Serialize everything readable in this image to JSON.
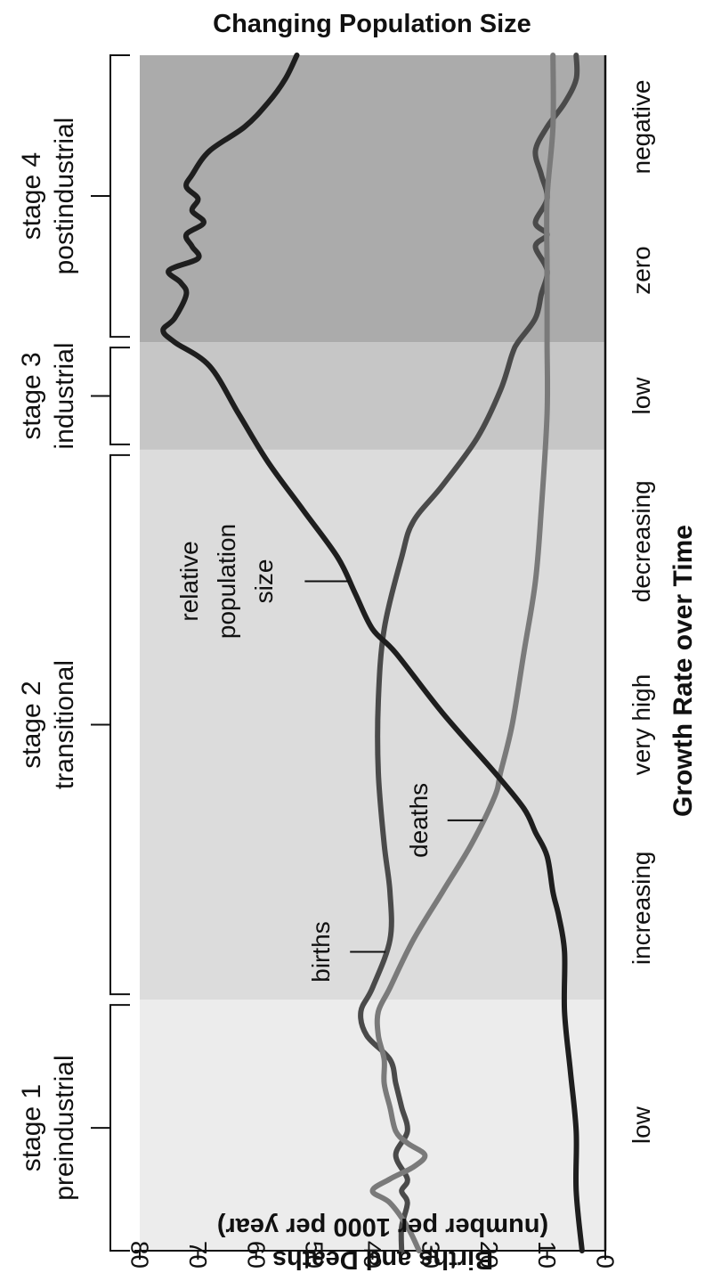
{
  "chart_data": {
    "type": "line",
    "title": "Changing Population Size",
    "xlabel": "Growth Rate over Time",
    "ylabel_lines": [
      "Births and Deaths",
      "(number per 1000 per year)"
    ],
    "ylim": [
      0,
      80
    ],
    "yticks": [
      0,
      10,
      20,
      30,
      40,
      50,
      60,
      70,
      80
    ],
    "xlim": [
      0,
      100
    ],
    "stages": [
      {
        "label_line1": "stage 1",
        "label_line2": "preindustrial",
        "start": 0,
        "end": 21,
        "rate": "low",
        "color": "#ececec"
      },
      {
        "label_line1": "stage 2",
        "label_line2": "transitional",
        "start": 21,
        "end": 67,
        "rate_labels": [
          "increasing",
          "very high",
          "decreasing"
        ],
        "color": "#dcdcdc"
      },
      {
        "label_line1": "stage 3",
        "label_line2": "industrial",
        "start": 67,
        "end": 76,
        "rate": "low",
        "color": "#c6c6c6"
      },
      {
        "label_line1": "stage 4",
        "label_line2": "postindustrial",
        "start": 76,
        "end": 100,
        "rate_labels": [
          "zero",
          "negative"
        ],
        "color": "#ababab"
      }
    ],
    "series": [
      {
        "name": "births",
        "color": "#4a4a4a",
        "points": [
          [
            0,
            35
          ],
          [
            2,
            35
          ],
          [
            4,
            34
          ],
          [
            5,
            35
          ],
          [
            6,
            34
          ],
          [
            8,
            36
          ],
          [
            10,
            34
          ],
          [
            12,
            35
          ],
          [
            14,
            36
          ],
          [
            16,
            37
          ],
          [
            18,
            41
          ],
          [
            20,
            42
          ],
          [
            22,
            40
          ],
          [
            26,
            37
          ],
          [
            30,
            37
          ],
          [
            34,
            38
          ],
          [
            40,
            39
          ],
          [
            46,
            39
          ],
          [
            52,
            38
          ],
          [
            58,
            35
          ],
          [
            61,
            33
          ],
          [
            64,
            28
          ],
          [
            68,
            22
          ],
          [
            72,
            18
          ],
          [
            75,
            16
          ],
          [
            76,
            15
          ],
          [
            78,
            12
          ],
          [
            80,
            11
          ],
          [
            82,
            10
          ],
          [
            84,
            12
          ],
          [
            85,
            10
          ],
          [
            86,
            12
          ],
          [
            88,
            10
          ],
          [
            90,
            11
          ],
          [
            92,
            12
          ],
          [
            94,
            10
          ],
          [
            96,
            7
          ],
          [
            98,
            5
          ],
          [
            100,
            5
          ]
        ]
      },
      {
        "name": "deaths",
        "color": "#7a7a7a",
        "points": [
          [
            0,
            32
          ],
          [
            2,
            34
          ],
          [
            4,
            37
          ],
          [
            5,
            40
          ],
          [
            6,
            37
          ],
          [
            7,
            33
          ],
          [
            8,
            31
          ],
          [
            9,
            34
          ],
          [
            10,
            36
          ],
          [
            12,
            37
          ],
          [
            14,
            38
          ],
          [
            16,
            38
          ],
          [
            18,
            39
          ],
          [
            20,
            39
          ],
          [
            22,
            37
          ],
          [
            26,
            33
          ],
          [
            30,
            28
          ],
          [
            34,
            23
          ],
          [
            38,
            19
          ],
          [
            40,
            18
          ],
          [
            44,
            16
          ],
          [
            50,
            14
          ],
          [
            56,
            12
          ],
          [
            62,
            11
          ],
          [
            70,
            10
          ],
          [
            76,
            10
          ],
          [
            82,
            10
          ],
          [
            88,
            10
          ],
          [
            94,
            9
          ],
          [
            100,
            9
          ]
        ]
      },
      {
        "name": "relative population size",
        "color": "#1e1e1e",
        "points": [
          [
            0,
            4
          ],
          [
            5,
            5
          ],
          [
            10,
            5
          ],
          [
            15,
            6
          ],
          [
            20,
            7
          ],
          [
            25,
            7
          ],
          [
            28,
            8
          ],
          [
            30,
            9
          ],
          [
            33,
            10
          ],
          [
            35,
            12
          ],
          [
            37,
            14
          ],
          [
            40,
            19
          ],
          [
            45,
            28
          ],
          [
            50,
            36
          ],
          [
            52,
            40
          ],
          [
            55,
            43
          ],
          [
            58,
            46
          ],
          [
            62,
            52
          ],
          [
            66,
            58
          ],
          [
            70,
            63
          ],
          [
            74,
            68
          ],
          [
            76,
            74
          ],
          [
            77,
            76
          ],
          [
            78,
            74
          ],
          [
            80,
            72
          ],
          [
            81,
            73
          ],
          [
            82,
            75
          ],
          [
            83,
            70
          ],
          [
            84,
            71
          ],
          [
            85,
            72
          ],
          [
            86,
            69
          ],
          [
            87,
            71
          ],
          [
            88,
            70
          ],
          [
            89,
            72
          ],
          [
            90,
            71
          ],
          [
            92,
            68
          ],
          [
            94,
            62
          ],
          [
            96,
            58
          ],
          [
            98,
            55
          ],
          [
            100,
            53
          ]
        ]
      }
    ],
    "annotations": {
      "births_label": "births",
      "deaths_label": "deaths",
      "pop_label_lines": [
        "relative",
        "population",
        "size"
      ]
    }
  }
}
